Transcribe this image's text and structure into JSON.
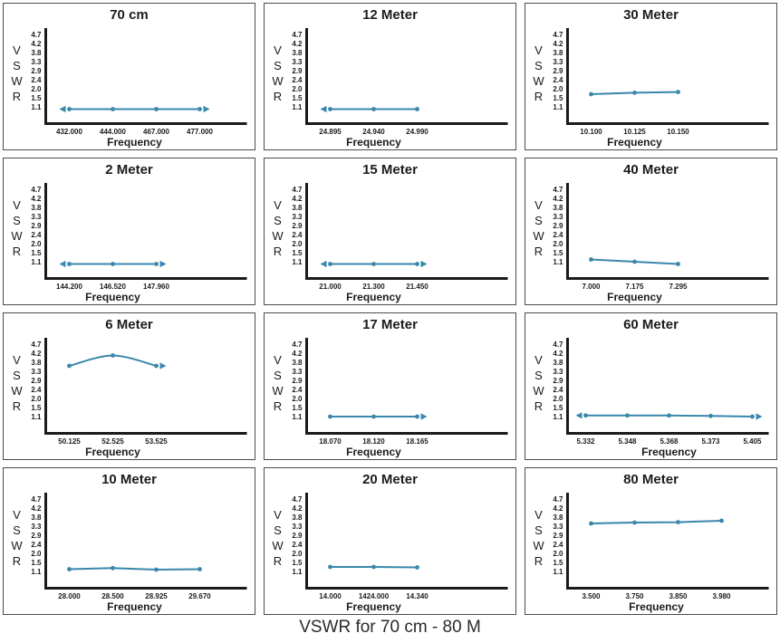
{
  "page": {
    "caption": "VSWR for 70 cm - 80 M"
  },
  "colors": {
    "line": "#3987ab",
    "axis": "#1a1a1a",
    "text": "#1c1c1c"
  },
  "chart_common": {
    "type": "line",
    "xlabel": "Frequency",
    "ylabel": "VSWR",
    "y_ticks": [
      "4.7",
      "4.2",
      "3.8",
      "3.3",
      "2.9",
      "2.4",
      "2.0",
      "1.5",
      "1.1"
    ],
    "ylim": [
      1.0,
      4.7
    ],
    "grid": "off",
    "legend": "none"
  },
  "chart_data": [
    {
      "title": "70 cm",
      "x_ticks": [
        "432.000",
        "444.000",
        "467.000",
        "477.000"
      ],
      "values": [
        1.0,
        1.0,
        1.0,
        1.0
      ],
      "arrows": {
        "left": true,
        "right": true
      },
      "smooth": false
    },
    {
      "title": "12 Meter",
      "x_ticks": [
        "24.895",
        "24.940",
        "24.990"
      ],
      "values": [
        1.0,
        1.0,
        1.0
      ],
      "arrows": {
        "left": true,
        "right": false
      },
      "smooth": false
    },
    {
      "title": "30 Meter",
      "x_ticks": [
        "10.100",
        "10.125",
        "10.150"
      ],
      "values": [
        1.7,
        1.78,
        1.82
      ],
      "arrows": {
        "left": false,
        "right": false
      },
      "smooth": false
    },
    {
      "title": "2 Meter",
      "x_ticks": [
        "144.200",
        "146.520",
        "147.960"
      ],
      "values": [
        1.0,
        1.0,
        1.0
      ],
      "arrows": {
        "left": true,
        "right": true
      },
      "smooth": false
    },
    {
      "title": "15 Meter",
      "x_ticks": [
        "21.000",
        "21.300",
        "21.450"
      ],
      "values": [
        1.0,
        1.0,
        1.0
      ],
      "arrows": {
        "left": true,
        "right": true
      },
      "smooth": false
    },
    {
      "title": "40 Meter",
      "x_ticks": [
        "7.000",
        "7.175",
        "7.295"
      ],
      "values": [
        1.2,
        1.1,
        1.0
      ],
      "arrows": {
        "left": false,
        "right": false
      },
      "smooth": false
    },
    {
      "title": "6 Meter",
      "x_ticks": [
        "50.125",
        "52.525",
        "53.525"
      ],
      "values": [
        3.6,
        4.1,
        3.6
      ],
      "arrows": {
        "left": false,
        "right": true
      },
      "smooth": true
    },
    {
      "title": "17 Meter",
      "x_ticks": [
        "18.070",
        "18.120",
        "18.165"
      ],
      "values": [
        1.1,
        1.1,
        1.1
      ],
      "arrows": {
        "left": false,
        "right": true
      },
      "smooth": false
    },
    {
      "title": "60 Meter",
      "x_ticks": [
        "5.332",
        "5.348",
        "5.368",
        "5.373",
        "5.405"
      ],
      "values": [
        1.15,
        1.15,
        1.15,
        1.13,
        1.1
      ],
      "arrows": {
        "left": true,
        "right": true
      },
      "smooth": false
    },
    {
      "title": "10 Meter",
      "x_ticks": [
        "28.000",
        "28.500",
        "28.925",
        "29.670"
      ],
      "values": [
        1.2,
        1.25,
        1.18,
        1.2
      ],
      "arrows": {
        "left": false,
        "right": false
      },
      "smooth": false
    },
    {
      "title": "20 Meter",
      "x_ticks": [
        "14.000",
        "1424.000",
        "14.340"
      ],
      "values": [
        1.3,
        1.3,
        1.28
      ],
      "arrows": {
        "left": false,
        "right": false
      },
      "smooth": false
    },
    {
      "title": "80 Meter",
      "x_ticks": [
        "3.500",
        "3.750",
        "3.850",
        "3.980"
      ],
      "values": [
        3.45,
        3.5,
        3.52,
        3.6
      ],
      "arrows": {
        "left": false,
        "right": false
      },
      "smooth": false
    }
  ]
}
